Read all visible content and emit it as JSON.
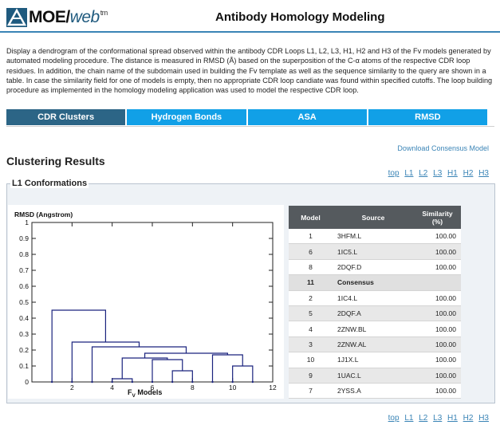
{
  "header": {
    "logo_text": "MOE/",
    "logo_web": "web",
    "logo_tm": "tm",
    "page_title": "Antibody Homology Modeling"
  },
  "description": "Display a dendrogram of the conformational spread observed within the antibody CDR Loops L1, L2, L3, H1, H2 and H3 of the Fv models generated by automated modeling procedure. The distance is measured in RMSD (Å) based on the superposition of the C-α atoms of the respective CDR loop residues. In addition, the chain name of the subdomain used in building the Fv template as well as the sequence similarity to the query are shown in a table. In case the similarity field for one of models is empty, then no appropriate CDR loop candiate was found within specified cutoffs. The loop building procedure as implemented in the homology modeling application was used to model the respective CDR loop.",
  "tabs": [
    "CDR Clusters",
    "Hydrogen Bonds",
    "ASA",
    "RMSD"
  ],
  "download_link": "Download Consensus Model",
  "section_title": "Clustering Results",
  "anchors": [
    "top",
    "L1",
    "L2",
    "L3",
    "H1",
    "H2",
    "H3"
  ],
  "panel_title": "L1 Conformations",
  "chart_data": {
    "type": "dendrogram",
    "ylabel": "RMSD (Angstrom)",
    "xlabel_main": "F",
    "xlabel_sub": "V",
    "xlabel_rest": " Models",
    "y_ticks": [
      "0",
      "0.1",
      "0.2",
      "0.3",
      "0.4",
      "0.5",
      "0.6",
      "0.7",
      "0.8",
      "0.9",
      "1"
    ],
    "x_ticks": [
      "2",
      "4",
      "6",
      "8",
      "10",
      "12"
    ],
    "xlim": [
      0,
      12
    ],
    "ylim": [
      0,
      1
    ],
    "links": [
      {
        "left": 4,
        "right": 5,
        "height": 0.02
      },
      {
        "left": 7,
        "right": 8,
        "height": 0.07
      },
      {
        "left": 10,
        "right": 11,
        "height": 0.1
      },
      {
        "left": 6,
        "right": 7.5,
        "height": 0.14
      },
      {
        "left": 9,
        "right": 10.5,
        "height": 0.17
      },
      {
        "left": 4.5,
        "right": 6.75,
        "height": 0.15
      },
      {
        "left": 5.625,
        "right": 9.75,
        "height": 0.18
      },
      {
        "left": 3,
        "right": 7.6875,
        "height": 0.22
      },
      {
        "left": 2,
        "right": 5.34375,
        "height": 0.25
      },
      {
        "left": 1,
        "right": 3.671875,
        "height": 0.45
      }
    ]
  },
  "table": {
    "headers": [
      "Model",
      "Source",
      "Similarity (%)"
    ],
    "rows": [
      {
        "model": "1",
        "source": "3HFM.L",
        "similarity": "100.00"
      },
      {
        "model": "6",
        "source": "1IC5.L",
        "similarity": "100.00"
      },
      {
        "model": "8",
        "source": "2DQF.D",
        "similarity": "100.00"
      },
      {
        "model": "11",
        "source": "Consensus",
        "similarity": ""
      },
      {
        "model": "2",
        "source": "1IC4.L",
        "similarity": "100.00"
      },
      {
        "model": "5",
        "source": "2DQF.A",
        "similarity": "100.00"
      },
      {
        "model": "4",
        "source": "2ZNW.BL",
        "similarity": "100.00"
      },
      {
        "model": "3",
        "source": "2ZNW.AL",
        "similarity": "100.00"
      },
      {
        "model": "10",
        "source": "1J1X.L",
        "similarity": "100.00"
      },
      {
        "model": "9",
        "source": "1UAC.L",
        "similarity": "100.00"
      },
      {
        "model": "7",
        "source": "2YSS.A",
        "similarity": "100.00"
      }
    ]
  },
  "colors": {
    "tab_active": "#2c6586",
    "tab": "#11a0e7",
    "link": "#3a84b6",
    "dendrogram": "#1a237e"
  }
}
